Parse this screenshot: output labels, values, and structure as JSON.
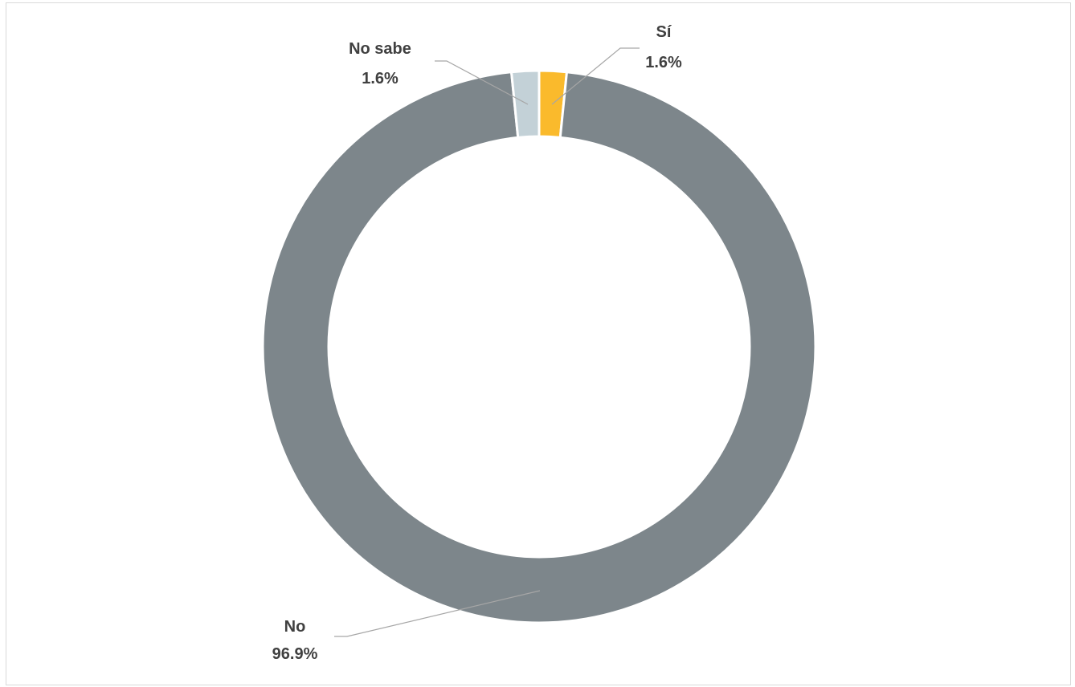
{
  "chart_data": {
    "type": "pie",
    "variant": "donut",
    "title": "",
    "slices": [
      {
        "label": "Sí",
        "value": 1.6,
        "display": "1.6%",
        "color": "#FABA2C"
      },
      {
        "label": "No",
        "value": 96.9,
        "display": "96.9%",
        "color": "#7D868B"
      },
      {
        "label": "No sabe",
        "value": 1.6,
        "display": "1.6%",
        "color": "#C3D1D7"
      }
    ],
    "start_angle": "top",
    "direction": "clockwise",
    "legend": "none",
    "label_style": "outside with leader lines"
  }
}
